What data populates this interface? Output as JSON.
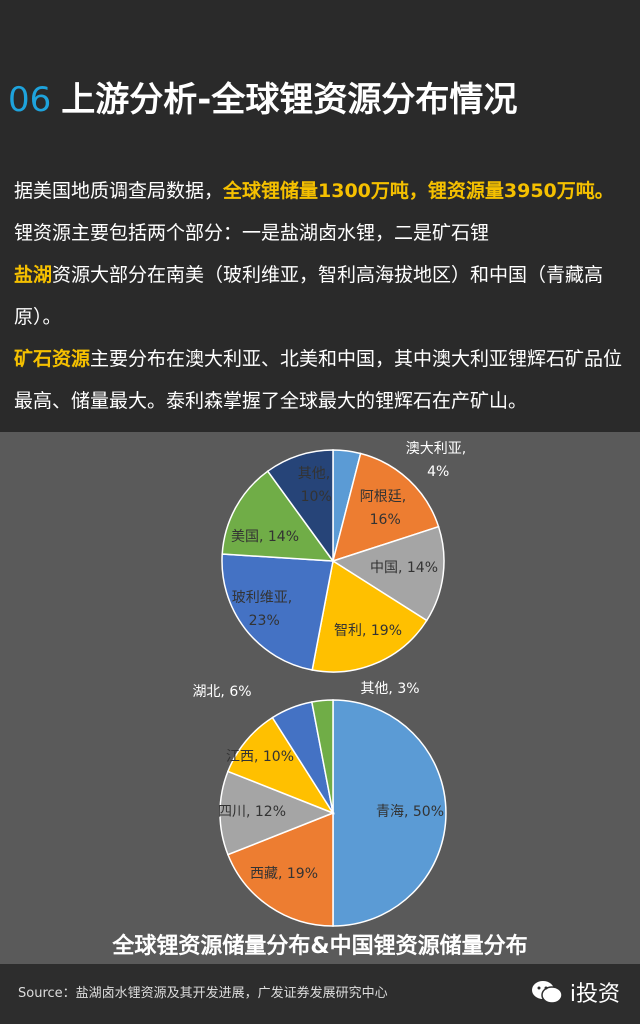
{
  "header": {
    "number": "06",
    "title": "上游分析-全球锂资源分布情况"
  },
  "paragraphs": [
    [
      {
        "text": "据美国地质调查局数据，"
      },
      {
        "text": "全球锂储量1300万吨，锂资源量3950万吨。",
        "highlight": true
      }
    ],
    [
      {
        "text": "锂资源主要包括两个部分：一是盐湖卤水锂，二是矿石锂"
      }
    ],
    [
      {
        "text": "盐湖",
        "highlight": true
      },
      {
        "text": "资源大部分在南美（玻利维亚，智利高海拔地区）和中国（青藏高原）。"
      }
    ],
    [
      {
        "text": "矿石资源",
        "highlight": true
      },
      {
        "text": "主要分布在澳大利亚、北美和中国，其中澳大利亚锂辉石矿品位最高、储量最大。泰利森掌握了全球最大的锂辉石在产矿山。"
      }
    ]
  ],
  "chart_data": [
    {
      "type": "pie",
      "values": [
        4,
        16,
        14,
        19,
        23,
        14,
        10
      ],
      "value_labels": [
        "澳大利亚, 4%",
        "阿根廷, 16%",
        "中国, 14%",
        "智利, 19%",
        "玻利维亚, 23%",
        "美国, 14%",
        "其他, 10%"
      ],
      "colors": [
        "#5b9bd5",
        "#ed7d31",
        "#a5a5a5",
        "#ffc000",
        "#4472c4",
        "#70ad47",
        "#264478"
      ]
    },
    {
      "type": "pie",
      "values": [
        50,
        19,
        12,
        10,
        6,
        3
      ],
      "value_labels": [
        "青海, 50%",
        "西藏, 19%",
        "四川, 12%",
        "江西, 10%",
        "湖北, 6%",
        "其他, 3%"
      ],
      "colors": [
        "#5b9bd5",
        "#ed7d31",
        "#a5a5a5",
        "#ffc000",
        "#4472c4",
        "#70ad47"
      ]
    }
  ],
  "caption": "全球锂资源储量分布&中国锂资源储量分布",
  "source": "Source：盐湖卤水锂资源及其开发进展，广发证券发展研究中心",
  "logo": "i投资"
}
